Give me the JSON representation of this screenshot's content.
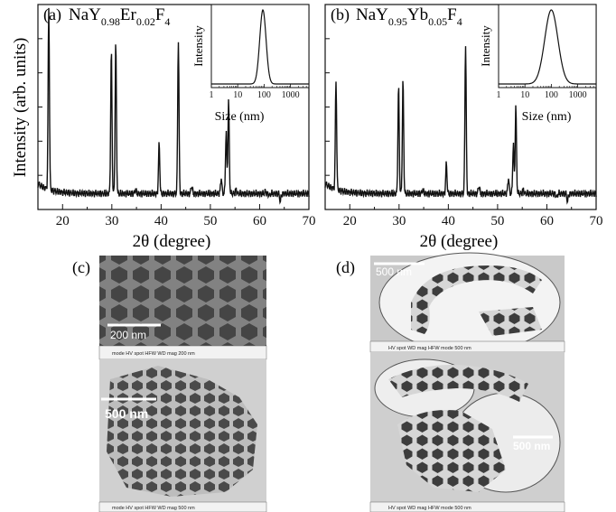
{
  "figure": {
    "panel_a_label": "(a)",
    "panel_b_label": "(b)",
    "panel_c_label": "(c)",
    "panel_d_label": "(d)",
    "formula_a": {
      "base": "NaY",
      "sub1": "0.98",
      "el2": "Er",
      "sub2": "0.02",
      "el3": "F",
      "sub3": "4"
    },
    "formula_b": {
      "base": "NaY",
      "sub1": "0.95",
      "el2": "Yb",
      "sub2": "0.05",
      "el3": "F",
      "sub3": "4"
    },
    "ylabel": "Intensity (arb. units)",
    "xlabel": "2θ (degree)",
    "inset_ylabel": "Intensity",
    "inset_xlabel": "Size (nm)"
  },
  "micrographs": {
    "c_top_scale": "200 nm",
    "c_bottom_scale": "500 nm",
    "d_top_scale": "500 nm",
    "d_bottom_scale": "500 nm",
    "c_top_footer": "mode  HV  spot  HFW  WD  mag  200 nm",
    "c_bottom_footer": "mode  HV  spot  HFW  WD  mag  500 nm",
    "d_top_footer": "HV  spot  WD  mag  HFW  mode  500 nm",
    "d_bottom_footer": "HV  spot  WD  mag  HFW  mode  500 nm"
  },
  "chart_data": [
    {
      "type": "line",
      "title": "(a) NaY0.98Er0.02F4",
      "xlabel": "2θ (degree)",
      "ylabel": "Intensity (arb. units)",
      "xlim": [
        15,
        70
      ],
      "xticks": [
        20,
        30,
        40,
        50,
        60,
        70
      ],
      "baseline": 0.08,
      "peaks": [
        {
          "x": 17.2,
          "y": 1.0
        },
        {
          "x": 29.9,
          "y": 0.8
        },
        {
          "x": 30.8,
          "y": 0.84
        },
        {
          "x": 34.8,
          "y": 0.1
        },
        {
          "x": 39.6,
          "y": 0.33
        },
        {
          "x": 43.5,
          "y": 0.86
        },
        {
          "x": 46.2,
          "y": 0.12
        },
        {
          "x": 52.2,
          "y": 0.16
        },
        {
          "x": 53.2,
          "y": 0.39
        },
        {
          "x": 53.7,
          "y": 0.55
        },
        {
          "x": 55.2,
          "y": 0.1
        },
        {
          "x": 61.2,
          "y": 0.09
        },
        {
          "x": 62.0,
          "y": 0.07
        },
        {
          "x": 64.2,
          "y": 0.04
        }
      ],
      "inset": {
        "xlabel": "Size (nm)",
        "ylabel": "Intensity",
        "xscale": "log",
        "xlim": [
          1,
          5000
        ],
        "xticks": [
          1,
          10,
          100,
          1000
        ],
        "peak_center": 90,
        "peak_log_sigma": 0.12
      }
    },
    {
      "type": "line",
      "title": "(b) NaY0.95Yb0.05F4",
      "xlabel": "2θ (degree)",
      "ylabel": "",
      "xlim": [
        15,
        70
      ],
      "xticks": [
        20,
        30,
        40,
        50,
        60,
        70
      ],
      "baseline": 0.08,
      "peaks": [
        {
          "x": 17.2,
          "y": 0.63
        },
        {
          "x": 29.9,
          "y": 0.62
        },
        {
          "x": 30.8,
          "y": 0.65
        },
        {
          "x": 34.8,
          "y": 0.1
        },
        {
          "x": 39.6,
          "y": 0.23
        },
        {
          "x": 43.5,
          "y": 0.84
        },
        {
          "x": 46.2,
          "y": 0.12
        },
        {
          "x": 52.2,
          "y": 0.16
        },
        {
          "x": 53.2,
          "y": 0.33
        },
        {
          "x": 53.7,
          "y": 0.52
        },
        {
          "x": 55.2,
          "y": 0.1
        },
        {
          "x": 61.2,
          "y": 0.08
        },
        {
          "x": 62.0,
          "y": 0.06
        },
        {
          "x": 64.2,
          "y": 0.04
        }
      ],
      "inset": {
        "xlabel": "Size (nm)",
        "ylabel": "Intensity",
        "xscale": "log",
        "xlim": [
          1,
          5000
        ],
        "xticks": [
          1,
          10,
          100,
          1000
        ],
        "peak_center": 100,
        "peak_log_sigma": 0.25
      }
    }
  ]
}
